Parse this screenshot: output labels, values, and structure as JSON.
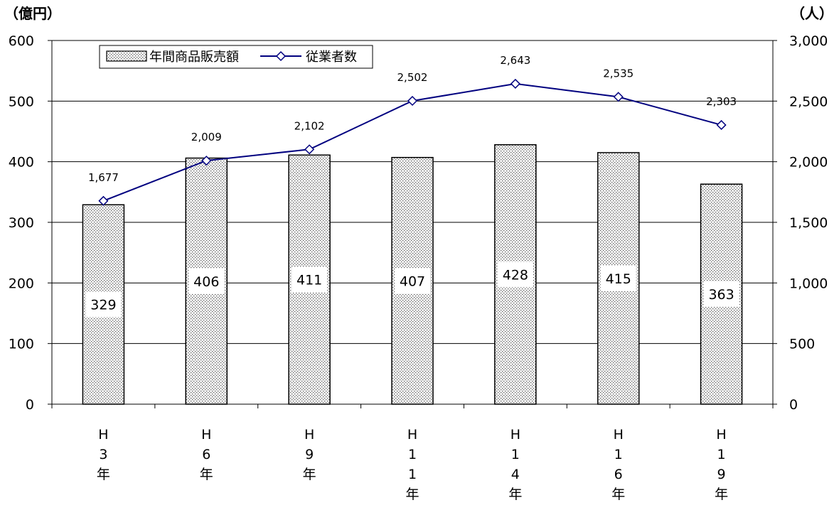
{
  "chart_data": {
    "type": "bar",
    "categories": [
      "H3年",
      "H6年",
      "H9年",
      "H11年",
      "H14年",
      "H16年",
      "H19年"
    ],
    "category_labels": [
      [
        "H",
        "3",
        "年"
      ],
      [
        "H",
        "6",
        "年"
      ],
      [
        "H",
        "9",
        "年"
      ],
      [
        "H",
        "1",
        "1",
        "年"
      ],
      [
        "H",
        "1",
        "4",
        "年"
      ],
      [
        "H",
        "1",
        "6",
        "年"
      ],
      [
        "H",
        "1",
        "9",
        "年"
      ]
    ],
    "series": [
      {
        "name": "年間商品販売額",
        "type": "bar",
        "axis": "left",
        "values": [
          329,
          406,
          411,
          407,
          428,
          415,
          363
        ],
        "value_labels": [
          "329",
          "406",
          "411",
          "407",
          "428",
          "415",
          "363"
        ]
      },
      {
        "name": "従業者数",
        "type": "line",
        "axis": "right",
        "values": [
          1677,
          2009,
          2102,
          2502,
          2643,
          2535,
          2303
        ],
        "value_labels": [
          "1,677",
          "2,009",
          "2,102",
          "2,502",
          "2,643",
          "2,535",
          "2,303"
        ],
        "color": "#00007f"
      }
    ],
    "y_left": {
      "unit": "（億円）",
      "ylim": [
        0,
        600
      ],
      "ticks": [
        0,
        100,
        200,
        300,
        400,
        500,
        600
      ],
      "tick_labels": [
        "0",
        "100",
        "200",
        "300",
        "400",
        "500",
        "600"
      ]
    },
    "y_right": {
      "unit": "（人）",
      "ylim": [
        0,
        3000
      ],
      "ticks": [
        0,
        500,
        1000,
        1500,
        2000,
        2500,
        3000
      ],
      "tick_labels": [
        "0",
        "500",
        "1,000",
        "1,500",
        "2,000",
        "2,500",
        "3,000"
      ]
    },
    "grid": true,
    "legend": "top-left"
  }
}
